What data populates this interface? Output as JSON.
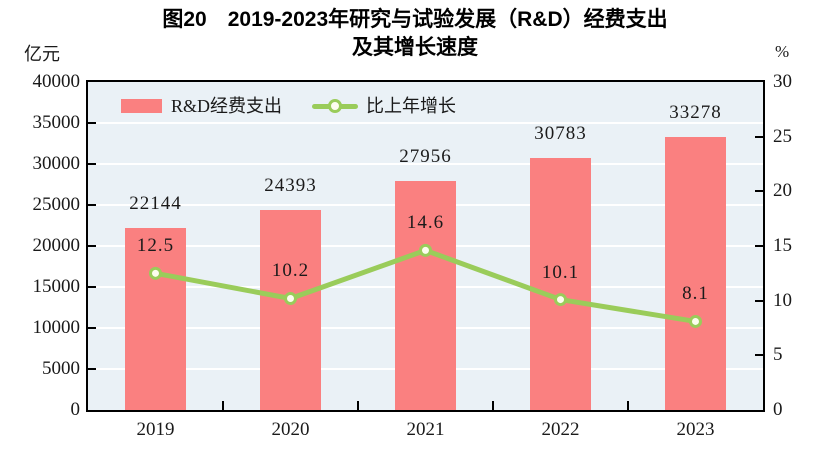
{
  "figure": {
    "title_line1": "图20　2019-2023年研究与试验发展（R&D）经费支出",
    "title_line2": "及其增长速度"
  },
  "legend": {
    "bar_label": "R&D经费支出",
    "line_label": "比上年增长"
  },
  "chart_data": {
    "type": "bar",
    "subtype": "bar-line-combo",
    "title": "图20 2019-2023年研究与试验发展（R&D）经费支出及其增长速度",
    "categories": [
      "2019",
      "2020",
      "2021",
      "2022",
      "2023"
    ],
    "series": [
      {
        "name": "R&D经费支出",
        "type": "bar",
        "axis": "left",
        "unit": "亿元",
        "values": [
          22144,
          24393,
          27956,
          30783,
          33278
        ]
      },
      {
        "name": "比上年增长",
        "type": "line",
        "axis": "right",
        "unit": "%",
        "values": [
          12.5,
          10.2,
          14.6,
          10.1,
          8.1
        ]
      }
    ],
    "left_axis": {
      "unit": "亿元",
      "min": 0,
      "max": 40000,
      "ticks": [
        0,
        5000,
        10000,
        15000,
        20000,
        25000,
        30000,
        35000,
        40000
      ]
    },
    "right_axis": {
      "unit": "%",
      "min": 0,
      "max": 30,
      "ticks": [
        0,
        5,
        10,
        15,
        20,
        25,
        30
      ]
    },
    "grid": true,
    "legend_position": "inside-top-left",
    "colors": {
      "bar": "#fa8080",
      "line": "#9acc5a",
      "marker_fill": "#fdfdee",
      "plot_bg": "#eaf1f6",
      "grid": "#ffffff",
      "axis": "#000000",
      "text": "#1a1a1a"
    }
  }
}
